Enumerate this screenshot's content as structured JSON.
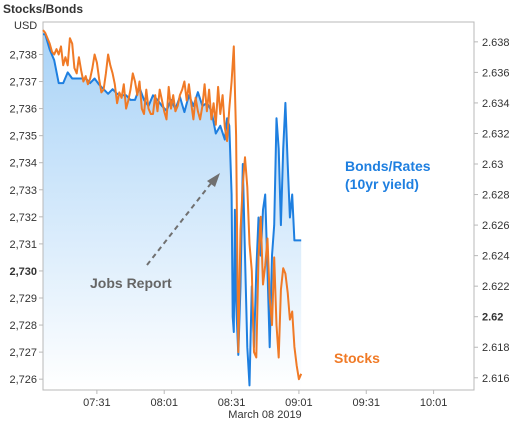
{
  "chart_data": {
    "type": "line",
    "title": "Stocks/Bonds",
    "left_axis": {
      "label": "USD",
      "range": [
        2725.6,
        2739.2
      ],
      "ticks": [
        "2,738",
        "2,737",
        "2,736",
        "2,735",
        "2,734",
        "2,733",
        "2,732",
        "2,731",
        "2,730",
        "2,729",
        "2,728",
        "2,727",
        "2,726"
      ],
      "tick_values": [
        2738,
        2737,
        2736,
        2735,
        2734,
        2733,
        2732,
        2731,
        2730,
        2729,
        2728,
        2727,
        2726
      ],
      "bold_tick": "2,730"
    },
    "right_axis": {
      "range": [
        2.6152,
        2.6393
      ],
      "ticks": [
        "2.638",
        "2.636",
        "2.634",
        "2.632",
        "2.63",
        "2.628",
        "2.626",
        "2.624",
        "2.622",
        "2.62",
        "2.618",
        "2.616"
      ],
      "tick_values": [
        2.638,
        2.636,
        2.634,
        2.632,
        2.63,
        2.628,
        2.626,
        2.624,
        2.622,
        2.62,
        2.618,
        2.616
      ],
      "bold_tick": "2.62"
    },
    "x_axis": {
      "label": "March 08 2019",
      "ticks": [
        "07:31",
        "08:01",
        "08:31",
        "09:01",
        "09:31",
        "10:01"
      ],
      "tick_minutes": [
        451,
        481,
        511,
        541,
        571,
        601
      ],
      "range_minutes": [
        427,
        619
      ]
    },
    "series": [
      {
        "name": "Bonds/Rates (10yr yield)",
        "axis": "right",
        "color": "#1e7fe0",
        "x_minutes": [
          427,
          428,
          430,
          432,
          434,
          436,
          438,
          440,
          442,
          444,
          446,
          448,
          450,
          452,
          454,
          456,
          458,
          460,
          462,
          464,
          466,
          468,
          470,
          472,
          474,
          476,
          478,
          480,
          482,
          484,
          486,
          488,
          490,
          492,
          494,
          496,
          498,
          500,
          502,
          504,
          506,
          508,
          509,
          510,
          511,
          511.5,
          512,
          512.5,
          513,
          514,
          515,
          516,
          517,
          518,
          519,
          520,
          521,
          522,
          523,
          524,
          525,
          526,
          527,
          528,
          529,
          530,
          531,
          532,
          533,
          534,
          535,
          536,
          537,
          538,
          539,
          540,
          541,
          542
        ],
        "values": [
          2.6385,
          2.6385,
          2.6375,
          2.6368,
          2.6353,
          2.6353,
          2.636,
          2.6356,
          2.6356,
          2.6356,
          2.6356,
          2.6353,
          2.6356,
          2.6352,
          2.6349,
          2.6346,
          2.6349,
          2.6346,
          2.6345,
          2.6345,
          2.6342,
          2.6342,
          2.635,
          2.6342,
          2.6338,
          2.6345,
          2.6342,
          2.6338,
          2.6335,
          2.6342,
          2.6336,
          2.6344,
          2.6334,
          2.6345,
          2.6338,
          2.6347,
          2.6338,
          2.634,
          2.6335,
          2.632,
          2.6325,
          2.6316,
          2.633,
          2.6325,
          2.628,
          2.62,
          2.619,
          2.627,
          2.621,
          2.6175,
          2.622,
          2.63,
          2.624,
          2.618,
          2.6155,
          2.622,
          2.618,
          2.623,
          2.6265,
          2.624,
          2.627,
          2.628,
          2.623,
          2.618,
          2.624,
          2.626,
          2.633,
          2.631,
          2.626,
          2.631,
          2.634,
          2.63,
          2.6265,
          2.628,
          2.625,
          2.625,
          2.625,
          2.625
        ]
      },
      {
        "name": "Stocks",
        "axis": "left",
        "color": "#f07a26",
        "x_minutes": [
          427,
          428,
          430,
          431,
          432,
          433,
          434,
          435,
          436,
          437,
          438,
          439,
          440,
          441,
          442,
          443,
          444,
          445,
          446,
          447,
          448,
          449,
          450,
          451,
          452,
          453,
          454,
          455,
          456,
          457,
          458,
          459,
          460,
          461,
          462,
          463,
          464,
          465,
          466,
          467,
          468,
          469,
          470,
          471,
          472,
          473,
          474,
          475,
          476,
          477,
          478,
          479,
          480,
          481,
          482,
          483,
          484,
          485,
          486,
          487,
          488,
          489,
          490,
          491,
          492,
          493,
          494,
          495,
          496,
          497,
          498,
          499,
          500,
          501,
          502,
          503,
          504,
          505,
          506,
          507,
          508,
          509,
          510,
          511,
          512,
          513,
          514,
          515,
          516,
          517,
          518,
          519,
          520,
          521,
          522,
          523,
          524,
          525,
          526,
          527,
          528,
          529,
          530,
          531,
          532,
          533,
          534,
          535,
          536,
          537,
          538,
          539,
          540,
          541,
          542
        ],
        "values": [
          2738.9,
          2738.8,
          2738.4,
          2738.1,
          2738.0,
          2738.2,
          2738.0,
          2738.3,
          2737.6,
          2737.9,
          2737.6,
          2738.6,
          2738.4,
          2737.5,
          2737.3,
          2737.9,
          2737.4,
          2737.0,
          2737.2,
          2736.9,
          2737.1,
          2737.5,
          2738.0,
          2737.7,
          2737.1,
          2736.6,
          2736.7,
          2737.3,
          2738.0,
          2737.6,
          2737.3,
          2736.9,
          2736.2,
          2736.6,
          2736.4,
          2736.9,
          2736.0,
          2736.3,
          2736.7,
          2737.3,
          2737.0,
          2736.5,
          2737.0,
          2736.0,
          2735.8,
          2736.7,
          2736.0,
          2735.8,
          2735.8,
          2736.5,
          2735.9,
          2736.7,
          2736.3,
          2735.9,
          2735.6,
          2736.8,
          2736.0,
          2736.5,
          2735.9,
          2736.1,
          2736.5,
          2736.7,
          2737.0,
          2736.3,
          2736.9,
          2736.2,
          2735.6,
          2736.4,
          2735.9,
          2735.6,
          2736.1,
          2736.9,
          2735.9,
          2736.7,
          2735.6,
          2736.2,
          2735.4,
          2736.8,
          2735.8,
          2736.5,
          2735.3,
          2734.8,
          2736.0,
          2737.0,
          2738.3,
          2735.0,
          2727.0,
          2731.5,
          2733.2,
          2734.2,
          2733.1,
          2731.0,
          2730.0,
          2727.0,
          2726.8,
          2730.5,
          2732.0,
          2729.5,
          2730.2,
          2731.2,
          2729.0,
          2728.0,
          2730.5,
          2728.0,
          2726.8,
          2729.3,
          2730.1,
          2729.9,
          2729.2,
          2728.2,
          2728.5,
          2727.2,
          2726.5,
          2726.0,
          2726.2
        ]
      }
    ],
    "annotations": [
      {
        "text": "Jobs Report",
        "color": "#666666"
      },
      {
        "text": "Bonds/Rates",
        "color": "#1e7fe0"
      },
      {
        "text": "(10yr yield)",
        "color": "#1e7fe0"
      },
      {
        "text": "Stocks",
        "color": "#f07a26"
      }
    ],
    "grid": false,
    "area_fill_color": "#bfe0fa"
  }
}
